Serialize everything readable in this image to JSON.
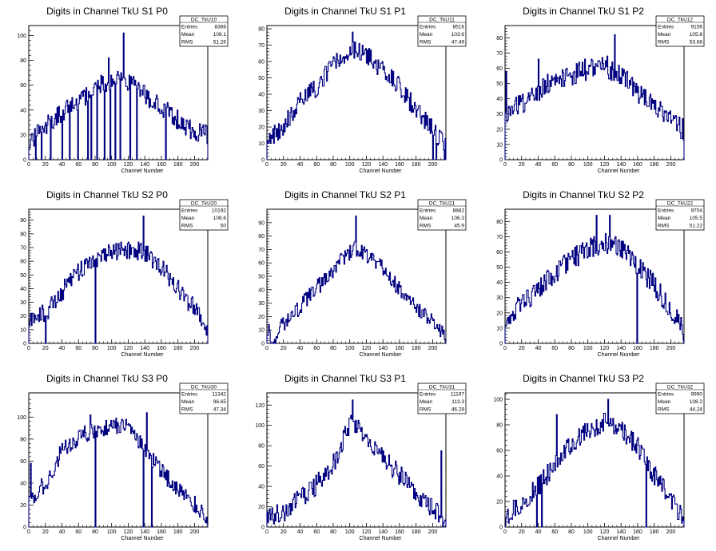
{
  "chart_data": [
    {
      "type": "bar",
      "title": "Digits in Channel TkU S1 P0",
      "xlabel": "Channel Number",
      "ylabel": "",
      "xlim": [
        0,
        216
      ],
      "ylim": [
        0,
        108
      ],
      "xticks": [
        0,
        20,
        40,
        60,
        80,
        100,
        120,
        140,
        160,
        180,
        200
      ],
      "yticks": [
        0,
        20,
        40,
        60,
        80,
        100
      ],
      "stats": {
        "name": "DC_TkU10",
        "rows": [
          {
            "label": "Entries",
            "value": "8366"
          },
          {
            "label": "Mean",
            "value": "108.1"
          },
          {
            "label": "RMS",
            "value": "51.26"
          }
        ]
      },
      "profile": {
        "seed": 11,
        "knots": [
          [
            0,
            14
          ],
          [
            20,
            28
          ],
          [
            50,
            42
          ],
          [
            80,
            58
          ],
          [
            100,
            63
          ],
          [
            115,
            66
          ],
          [
            135,
            54
          ],
          [
            165,
            40
          ],
          [
            195,
            24
          ],
          [
            216,
            20
          ]
        ],
        "noise": 8,
        "dropouts": [
          8,
          15,
          26,
          40,
          49,
          59,
          71,
          75,
          82,
          91,
          98,
          104,
          110,
          122,
          130,
          165
        ],
        "spikes": [
          [
            114,
            102
          ],
          [
            96,
            82
          ]
        ]
      }
    },
    {
      "type": "bar",
      "title": "Digits in Channel TkU S1 P1",
      "xlabel": "Channel Number",
      "ylabel": "",
      "xlim": [
        0,
        216
      ],
      "ylim": [
        0,
        82
      ],
      "xticks": [
        0,
        20,
        40,
        60,
        80,
        100,
        120,
        140,
        160,
        180,
        200
      ],
      "yticks": [
        0,
        10,
        20,
        30,
        40,
        50,
        60,
        70,
        80
      ],
      "stats": {
        "name": "DC_TkU11",
        "rows": [
          {
            "label": "Entries",
            "value": "8516"
          },
          {
            "label": "Mean",
            "value": "103.6"
          },
          {
            "label": "RMS",
            "value": "47.49"
          }
        ]
      },
      "profile": {
        "seed": 12,
        "knots": [
          [
            0,
            13
          ],
          [
            20,
            20
          ],
          [
            40,
            35
          ],
          [
            60,
            45
          ],
          [
            80,
            58
          ],
          [
            100,
            68
          ],
          [
            120,
            64
          ],
          [
            140,
            55
          ],
          [
            160,
            44
          ],
          [
            180,
            30
          ],
          [
            200,
            18
          ],
          [
            216,
            8
          ]
        ],
        "noise": 6,
        "dropouts": [
          200,
          204,
          214
        ],
        "spikes": [
          [
            103,
            78
          ]
        ]
      }
    },
    {
      "type": "bar",
      "title": "Digits in Channel TkU S1 P2",
      "xlabel": "Channel Number",
      "ylabel": "",
      "xlim": [
        0,
        216
      ],
      "ylim": [
        0,
        88
      ],
      "xticks": [
        0,
        20,
        40,
        60,
        80,
        100,
        120,
        140,
        160,
        180,
        200
      ],
      "yticks": [
        0,
        10,
        20,
        30,
        40,
        50,
        60,
        70,
        80
      ],
      "stats": {
        "name": "DC_TkU12",
        "rows": [
          {
            "label": "Entries",
            "value": "9156"
          },
          {
            "label": "Mean",
            "value": "105.8"
          },
          {
            "label": "RMS",
            "value": "53.68"
          }
        ]
      },
      "profile": {
        "seed": 13,
        "knots": [
          [
            0,
            30
          ],
          [
            20,
            36
          ],
          [
            40,
            45
          ],
          [
            60,
            52
          ],
          [
            80,
            56
          ],
          [
            100,
            60
          ],
          [
            120,
            62
          ],
          [
            140,
            54
          ],
          [
            170,
            40
          ],
          [
            200,
            26
          ],
          [
            214,
            20
          ],
          [
            216,
            0
          ]
        ],
        "noise": 7,
        "dropouts": [],
        "spikes": [
          [
            1,
            58
          ],
          [
            132,
            82
          ],
          [
            40,
            66
          ]
        ]
      }
    },
    {
      "type": "bar",
      "title": "Digits in Channel TkU S2 P0",
      "xlabel": "Channel Number",
      "ylabel": "",
      "xlim": [
        0,
        216
      ],
      "ylim": [
        0,
        98
      ],
      "xticks": [
        0,
        20,
        40,
        60,
        80,
        100,
        120,
        140,
        160,
        180,
        200
      ],
      "yticks": [
        0,
        10,
        20,
        30,
        40,
        50,
        60,
        70,
        80,
        90
      ],
      "stats": {
        "name": "DC_TkU20",
        "rows": [
          {
            "label": "Entries",
            "value": "10192"
          },
          {
            "label": "Mean",
            "value": "108.6"
          },
          {
            "label": "RMS",
            "value": "50"
          }
        ]
      },
      "profile": {
        "seed": 21,
        "knots": [
          [
            0,
            18
          ],
          [
            20,
            22
          ],
          [
            40,
            38
          ],
          [
            60,
            52
          ],
          [
            80,
            62
          ],
          [
            100,
            66
          ],
          [
            120,
            68
          ],
          [
            140,
            66
          ],
          [
            160,
            55
          ],
          [
            180,
            40
          ],
          [
            200,
            25
          ],
          [
            216,
            8
          ]
        ],
        "noise": 7,
        "dropouts": [
          20,
          80
        ],
        "spikes": [
          [
            138,
            93
          ]
        ]
      }
    },
    {
      "type": "bar",
      "title": "Digits in Channel TkU S2 P1",
      "xlabel": "Channel Number",
      "ylabel": "",
      "xlim": [
        0,
        216
      ],
      "ylim": [
        0,
        100
      ],
      "xticks": [
        0,
        20,
        40,
        60,
        80,
        100,
        120,
        140,
        160,
        180,
        200
      ],
      "yticks": [
        0,
        10,
        20,
        30,
        40,
        50,
        60,
        70,
        80,
        90
      ],
      "stats": {
        "name": "DC_TkU21",
        "rows": [
          {
            "label": "Entries",
            "value": "8882"
          },
          {
            "label": "Mean",
            "value": "106.3"
          },
          {
            "label": "RMS",
            "value": "45.9"
          }
        ]
      },
      "profile": {
        "seed": 22,
        "knots": [
          [
            0,
            8
          ],
          [
            5,
            0
          ],
          [
            12,
            0
          ],
          [
            16,
            12
          ],
          [
            30,
            20
          ],
          [
            50,
            35
          ],
          [
            70,
            48
          ],
          [
            90,
            62
          ],
          [
            105,
            72
          ],
          [
            120,
            66
          ],
          [
            140,
            55
          ],
          [
            160,
            40
          ],
          [
            180,
            28
          ],
          [
            200,
            15
          ],
          [
            216,
            5
          ]
        ],
        "noise": 6,
        "dropouts": [],
        "spikes": [
          [
            107,
            95
          ],
          [
            2,
            14
          ]
        ]
      }
    },
    {
      "type": "bar",
      "title": "Digits in Channel TkU S2 P2",
      "xlabel": "Channel Number",
      "ylabel": "",
      "xlim": [
        0,
        216
      ],
      "ylim": [
        0,
        88
      ],
      "xticks": [
        0,
        20,
        40,
        60,
        80,
        100,
        120,
        140,
        160,
        180,
        200
      ],
      "yticks": [
        0,
        10,
        20,
        30,
        40,
        50,
        60,
        70,
        80
      ],
      "stats": {
        "name": "DC_TkU22",
        "rows": [
          {
            "label": "Entries",
            "value": "9704"
          },
          {
            "label": "Mean",
            "value": "105.5"
          },
          {
            "label": "RMS",
            "value": "51.22"
          }
        ]
      },
      "profile": {
        "seed": 23,
        "knots": [
          [
            0,
            16
          ],
          [
            20,
            26
          ],
          [
            40,
            36
          ],
          [
            60,
            46
          ],
          [
            80,
            55
          ],
          [
            100,
            62
          ],
          [
            120,
            66
          ],
          [
            140,
            62
          ],
          [
            160,
            52
          ],
          [
            180,
            38
          ],
          [
            200,
            22
          ],
          [
            216,
            8
          ]
        ],
        "noise": 7,
        "dropouts": [
          159
        ],
        "spikes": [
          [
            110,
            84
          ],
          [
            126,
            84
          ]
        ]
      }
    },
    {
      "type": "bar",
      "title": "Digits in Channel TkU S3 P0",
      "xlabel": "Channel Number",
      "ylabel": "",
      "xlim": [
        0,
        216
      ],
      "ylim": [
        0,
        122
      ],
      "xticks": [
        0,
        20,
        40,
        60,
        80,
        100,
        120,
        140,
        160,
        180,
        200
      ],
      "yticks": [
        0,
        20,
        40,
        60,
        80,
        100
      ],
      "stats": {
        "name": "DC_TkU30",
        "rows": [
          {
            "label": "Entries",
            "value": "11342"
          },
          {
            "label": "Mean",
            "value": "96.65"
          },
          {
            "label": "RMS",
            "value": "47.34"
          }
        ]
      },
      "profile": {
        "seed": 31,
        "knots": [
          [
            0,
            25
          ],
          [
            20,
            40
          ],
          [
            40,
            70
          ],
          [
            60,
            82
          ],
          [
            80,
            88
          ],
          [
            100,
            92
          ],
          [
            120,
            90
          ],
          [
            140,
            72
          ],
          [
            160,
            50
          ],
          [
            180,
            34
          ],
          [
            200,
            20
          ],
          [
            216,
            8
          ]
        ],
        "noise": 8,
        "dropouts": [
          80,
          138,
          148
        ],
        "spikes": [
          [
            2,
            58
          ],
          [
            142,
            104
          ],
          [
            74,
            102
          ]
        ]
      }
    },
    {
      "type": "bar",
      "title": "Digits in Channel TkU S3 P1",
      "xlabel": "Channel Number",
      "ylabel": "",
      "xlim": [
        0,
        216
      ],
      "ylim": [
        0,
        132
      ],
      "xticks": [
        0,
        20,
        40,
        60,
        80,
        100,
        120,
        140,
        160,
        180,
        200
      ],
      "yticks": [
        0,
        20,
        40,
        60,
        80,
        100,
        120
      ],
      "stats": {
        "name": "DC_TkU31",
        "rows": [
          {
            "label": "Entries",
            "value": "11197"
          },
          {
            "label": "Mean",
            "value": "113.3"
          },
          {
            "label": "RMS",
            "value": "46.28"
          }
        ]
      },
      "profile": {
        "seed": 32,
        "knots": [
          [
            0,
            8
          ],
          [
            20,
            15
          ],
          [
            40,
            28
          ],
          [
            60,
            42
          ],
          [
            80,
            62
          ],
          [
            100,
            102
          ],
          [
            115,
            92
          ],
          [
            130,
            78
          ],
          [
            150,
            60
          ],
          [
            170,
            42
          ],
          [
            190,
            25
          ],
          [
            205,
            14
          ],
          [
            216,
            5
          ]
        ],
        "noise": 10,
        "dropouts": [
          212
        ],
        "spikes": [
          [
            103,
            125
          ],
          [
            210,
            75
          ]
        ]
      }
    },
    {
      "type": "bar",
      "title": "Digits in Channel TkU S3 P2",
      "xlabel": "Channel Number",
      "ylabel": "",
      "xlim": [
        0,
        216
      ],
      "ylim": [
        0,
        105
      ],
      "xticks": [
        0,
        20,
        40,
        60,
        80,
        100,
        120,
        140,
        160,
        180,
        200
      ],
      "yticks": [
        0,
        20,
        40,
        60,
        80,
        100
      ],
      "stats": {
        "name": "DC_TkU32",
        "rows": [
          {
            "label": "Entries",
            "value": "9990"
          },
          {
            "label": "Mean",
            "value": "108.2"
          },
          {
            "label": "RMS",
            "value": "44.24"
          }
        ]
      },
      "profile": {
        "seed": 33,
        "knots": [
          [
            0,
            8
          ],
          [
            20,
            18
          ],
          [
            40,
            32
          ],
          [
            60,
            50
          ],
          [
            80,
            64
          ],
          [
            100,
            76
          ],
          [
            120,
            82
          ],
          [
            140,
            76
          ],
          [
            160,
            62
          ],
          [
            180,
            40
          ],
          [
            200,
            20
          ],
          [
            216,
            6
          ]
        ],
        "noise": 8,
        "dropouts": [
          38,
          44,
          170
        ],
        "spikes": [
          [
            62,
            88
          ],
          [
            124,
            100
          ]
        ]
      }
    }
  ],
  "colors": {
    "line": "#000080",
    "axis": "#000000",
    "background": "#ffffff"
  }
}
